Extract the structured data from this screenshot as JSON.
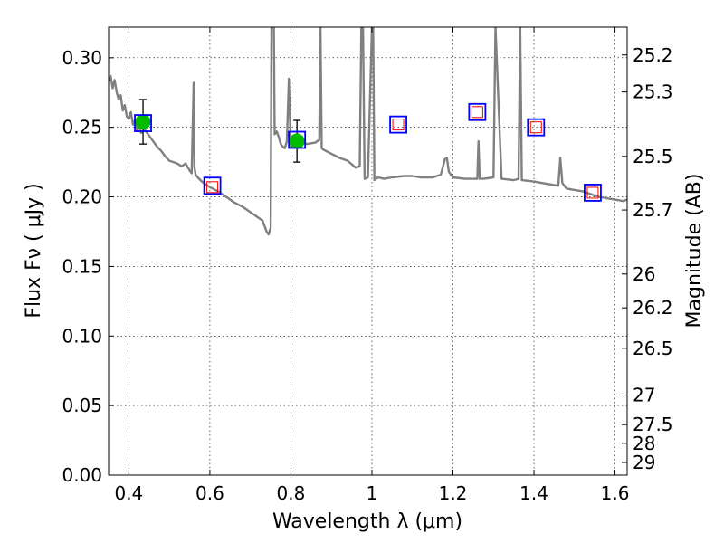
{
  "chart_data": {
    "type": "scatter",
    "xlabel": "Wavelength  λ (μm)",
    "ylabel": "Flux  Fν  ( μJy )",
    "y2label": "Magnitude (AB)",
    "xlim": [
      0.35,
      1.63
    ],
    "ylim": [
      0.0,
      0.322
    ],
    "xticks": [
      0.4,
      0.6,
      0.8,
      1.0,
      1.2,
      1.4,
      1.6
    ],
    "xtick_labels": [
      "0.4",
      "0.6",
      "0.8",
      "1",
      "1.2",
      "1.4",
      "1.6"
    ],
    "yticks": [
      0.0,
      0.05,
      0.1,
      0.15,
      0.2,
      0.25,
      0.3
    ],
    "ytick_labels": [
      "0.00",
      "0.05",
      "0.10",
      "0.15",
      "0.20",
      "0.25",
      "0.30"
    ],
    "mag_ticks": [
      25.2,
      25.3,
      25.5,
      25.7,
      26,
      26.2,
      26.5,
      27,
      27.5,
      28,
      29
    ],
    "mag_tick_labels": [
      "25.2",
      "25.3",
      "25.5",
      "25.7",
      "26",
      "26.2",
      "26.5",
      "27",
      "27.5",
      "28",
      "29"
    ],
    "grid": true,
    "colors": {
      "model": "#808080",
      "observed": "#00bb00",
      "model_band": "#0000ff",
      "synthetic": "#ff0000",
      "errorbar": "#000000",
      "grid": "#000000"
    },
    "series": [
      {
        "name": "model spectrum",
        "kind": "line",
        "x": [
          0.35,
          0.355,
          0.36,
          0.365,
          0.37,
          0.375,
          0.38,
          0.385,
          0.39,
          0.395,
          0.4,
          0.405,
          0.41,
          0.415,
          0.42,
          0.425,
          0.43,
          0.44,
          0.45,
          0.46,
          0.47,
          0.48,
          0.49,
          0.5,
          0.51,
          0.52,
          0.53,
          0.54,
          0.55,
          0.555,
          0.56,
          0.562,
          0.565,
          0.57,
          0.58,
          0.59,
          0.6,
          0.62,
          0.64,
          0.66,
          0.68,
          0.7,
          0.72,
          0.73,
          0.74,
          0.745,
          0.75,
          0.752,
          0.755,
          0.758,
          0.76,
          0.765,
          0.77,
          0.775,
          0.78,
          0.785,
          0.79,
          0.795,
          0.8,
          0.81,
          0.82,
          0.84,
          0.86,
          0.87,
          0.873,
          0.876,
          0.88,
          0.9,
          0.92,
          0.94,
          0.96,
          0.97,
          0.974,
          0.978,
          0.982,
          0.99,
          1.0,
          1.003,
          1.006,
          1.01,
          1.015,
          1.03,
          1.05,
          1.08,
          1.1,
          1.12,
          1.15,
          1.17,
          1.18,
          1.185,
          1.19,
          1.2,
          1.23,
          1.25,
          1.26,
          1.263,
          1.266,
          1.275,
          1.3,
          1.305,
          1.32,
          1.35,
          1.362,
          1.366,
          1.37,
          1.4,
          1.42,
          1.44,
          1.46,
          1.465,
          1.47,
          1.48,
          1.5,
          1.52,
          1.54,
          1.56,
          1.58,
          1.6,
          1.62,
          1.63
        ],
        "y": [
          0.283,
          0.287,
          0.278,
          0.284,
          0.275,
          0.27,
          0.273,
          0.262,
          0.266,
          0.258,
          0.256,
          0.261,
          0.252,
          0.255,
          0.248,
          0.251,
          0.246,
          0.248,
          0.244,
          0.24,
          0.236,
          0.233,
          0.229,
          0.226,
          0.225,
          0.224,
          0.222,
          0.224,
          0.219,
          0.217,
          0.282,
          0.221,
          0.216,
          0.214,
          0.211,
          0.209,
          0.207,
          0.204,
          0.2,
          0.196,
          0.193,
          0.189,
          0.185,
          0.183,
          0.175,
          0.173,
          0.178,
          0.322,
          0.322,
          0.322,
          0.245,
          0.247,
          0.243,
          0.238,
          0.236,
          0.235,
          0.24,
          0.285,
          0.235,
          0.238,
          0.24,
          0.238,
          0.239,
          0.241,
          0.322,
          0.235,
          0.234,
          0.231,
          0.228,
          0.226,
          0.221,
          0.222,
          0.322,
          0.322,
          0.213,
          0.214,
          0.322,
          0.322,
          0.212,
          0.213,
          0.214,
          0.213,
          0.214,
          0.215,
          0.215,
          0.214,
          0.214,
          0.216,
          0.227,
          0.228,
          0.218,
          0.214,
          0.213,
          0.213,
          0.213,
          0.24,
          0.213,
          0.213,
          0.214,
          0.322,
          0.213,
          0.212,
          0.213,
          0.322,
          0.212,
          0.211,
          0.21,
          0.209,
          0.208,
          0.228,
          0.21,
          0.206,
          0.205,
          0.204,
          0.202,
          0.2,
          0.199,
          0.198,
          0.197,
          0.198
        ]
      },
      {
        "name": "observed photometry",
        "kind": "points",
        "x": [
          0.435,
          0.815
        ],
        "y": [
          0.254,
          0.24
        ],
        "yerr": [
          0.016,
          0.015
        ]
      },
      {
        "name": "model band fluxes",
        "kind": "squares",
        "x": [
          0.435,
          0.606,
          0.815,
          1.065,
          1.26,
          1.405,
          1.545
        ],
        "y": [
          0.253,
          0.208,
          0.241,
          0.252,
          0.261,
          0.25,
          0.203
        ]
      },
      {
        "name": "synthetic bands",
        "kind": "small-squares",
        "x": [
          0.606,
          1.065,
          1.26,
          1.405,
          1.545
        ],
        "y": [
          0.207,
          0.252,
          0.261,
          0.25,
          0.203
        ]
      }
    ]
  }
}
